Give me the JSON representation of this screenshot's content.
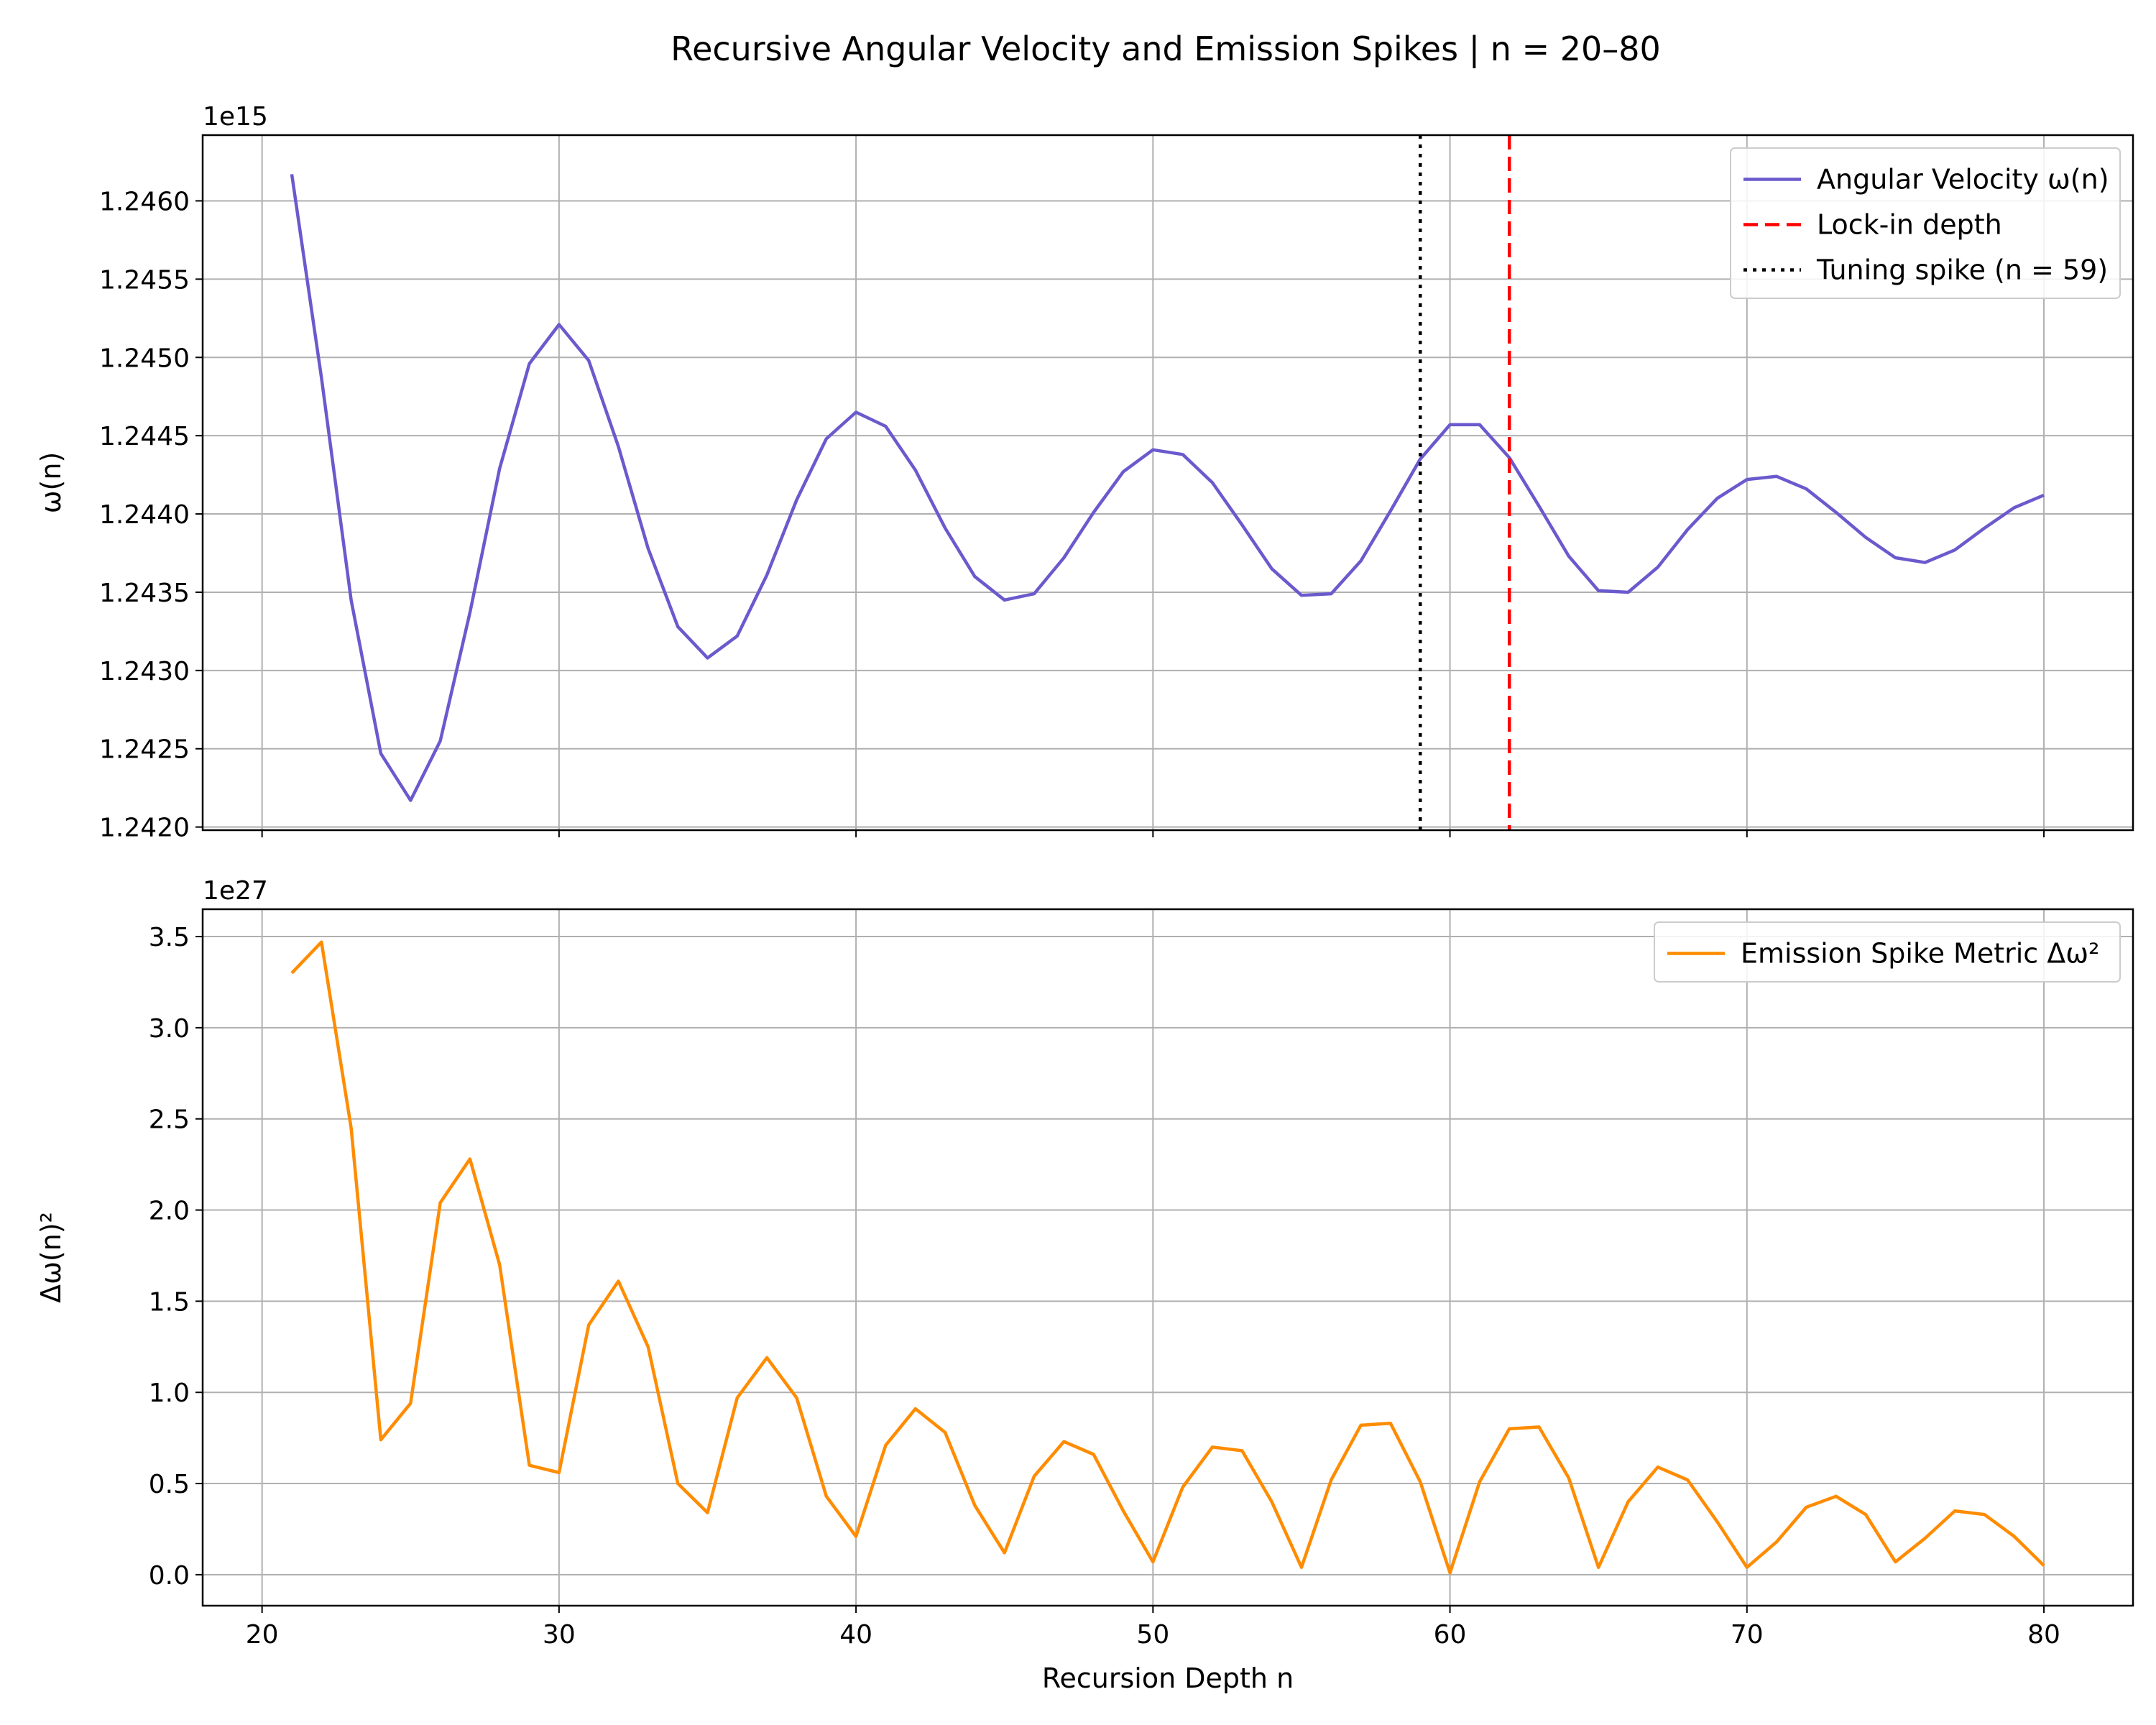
{
  "title": "Recursive Angular Velocity and Emission Spikes | n = 20–80",
  "chart_data": [
    {
      "type": "line",
      "ylabel": "ω(n)",
      "offset_text": "1e15",
      "xlim": [
        18,
        83
      ],
      "ylim": [
        1.24198,
        1.24642
      ],
      "xticks": [
        20,
        30,
        40,
        50,
        60,
        70,
        80
      ],
      "yticks": [
        1.242,
        1.2425,
        1.243,
        1.2435,
        1.244,
        1.2445,
        1.245,
        1.2455,
        1.246
      ],
      "ytick_labels": [
        "1.2420",
        "1.2425",
        "1.2430",
        "1.2435",
        "1.2440",
        "1.2445",
        "1.2450",
        "1.2455",
        "1.2460"
      ],
      "grid": true,
      "legend_position": "top-right",
      "series": [
        {
          "name": "Angular Velocity ω(n)",
          "color": "#6a5acd",
          "x": [
            21,
            22,
            23,
            24,
            25,
            26,
            27,
            28,
            29,
            30,
            31,
            32,
            33,
            34,
            35,
            36,
            37,
            38,
            39,
            40,
            41,
            42,
            43,
            44,
            45,
            46,
            47,
            48,
            49,
            50,
            51,
            52,
            53,
            54,
            55,
            56,
            57,
            58,
            59,
            60,
            61,
            62,
            63,
            64,
            65,
            66,
            67,
            68,
            69,
            70,
            71,
            72,
            73,
            74,
            75,
            76,
            77,
            78,
            79,
            80
          ],
          "values": [
            1.24617,
            1.24487,
            1.24345,
            1.24247,
            1.24217,
            1.24255,
            1.24337,
            1.24429,
            1.24496,
            1.24521,
            1.24498,
            1.24443,
            1.24378,
            1.24328,
            1.24308,
            1.24322,
            1.24361,
            1.24409,
            1.24448,
            1.24465,
            1.24456,
            1.24428,
            1.24391,
            1.2436,
            1.24345,
            1.24349,
            1.24372,
            1.24401,
            1.24427,
            1.24441,
            1.24438,
            1.2442,
            1.24393,
            1.24365,
            1.24348,
            1.24349,
            1.2437,
            1.24402,
            1.24435,
            1.24457,
            1.24457,
            1.24436,
            1.24405,
            1.24373,
            1.24351,
            1.2435,
            1.24366,
            1.2439,
            1.2441,
            1.24422,
            1.24424,
            1.24416,
            1.24401,
            1.24385,
            1.24372,
            1.24369,
            1.24377,
            1.24391,
            1.24404,
            1.24412
          ]
        }
      ],
      "vlines": [
        {
          "name": "Lock-in depth",
          "x": 62,
          "color": "#ff0000",
          "style": "dashed"
        },
        {
          "name": "Tuning spike (n = 59)",
          "x": 59,
          "color": "#000000",
          "style": "dotted"
        }
      ]
    },
    {
      "type": "line",
      "xlabel": "Recursion Depth n",
      "ylabel": "Δω(n)²",
      "offset_text": "1e27",
      "xlim": [
        18,
        83
      ],
      "ylim": [
        -0.17,
        3.65
      ],
      "xticks": [
        20,
        30,
        40,
        50,
        60,
        70,
        80
      ],
      "yticks": [
        0,
        0.5,
        1,
        1.5,
        2,
        2.5,
        3,
        3.5
      ],
      "ytick_labels": [
        "0.0",
        "0.5",
        "1.0",
        "1.5",
        "2.0",
        "2.5",
        "3.0",
        "3.5"
      ],
      "grid": true,
      "legend_position": "top-right",
      "series": [
        {
          "name": "Emission Spike Metric Δω²",
          "color": "#ff8c00",
          "x": [
            21,
            22,
            23,
            24,
            25,
            26,
            27,
            28,
            29,
            30,
            31,
            32,
            33,
            34,
            35,
            36,
            37,
            38,
            39,
            40,
            41,
            42,
            43,
            44,
            45,
            46,
            47,
            48,
            49,
            50,
            51,
            52,
            53,
            54,
            55,
            56,
            57,
            58,
            59,
            60,
            61,
            62,
            63,
            64,
            65,
            66,
            67,
            68,
            69,
            70,
            71,
            72,
            73,
            74,
            75,
            76,
            77,
            78,
            79,
            80
          ],
          "values": [
            3.3,
            3.47,
            2.45,
            0.74,
            0.94,
            2.04,
            2.28,
            1.7,
            0.6,
            0.56,
            1.37,
            1.61,
            1.25,
            0.5,
            0.34,
            0.97,
            1.19,
            0.97,
            0.43,
            0.21,
            0.71,
            0.91,
            0.78,
            0.38,
            0.12,
            0.54,
            0.73,
            0.66,
            0.35,
            0.07,
            0.48,
            0.7,
            0.68,
            0.4,
            0.04,
            0.52,
            0.82,
            0.83,
            0.51,
            0.01,
            0.51,
            0.8,
            0.81,
            0.53,
            0.04,
            0.4,
            0.59,
            0.52,
            0.29,
            0.04,
            0.18,
            0.37,
            0.43,
            0.33,
            0.07,
            0.2,
            0.35,
            0.33,
            0.21,
            0.05
          ]
        }
      ]
    }
  ]
}
